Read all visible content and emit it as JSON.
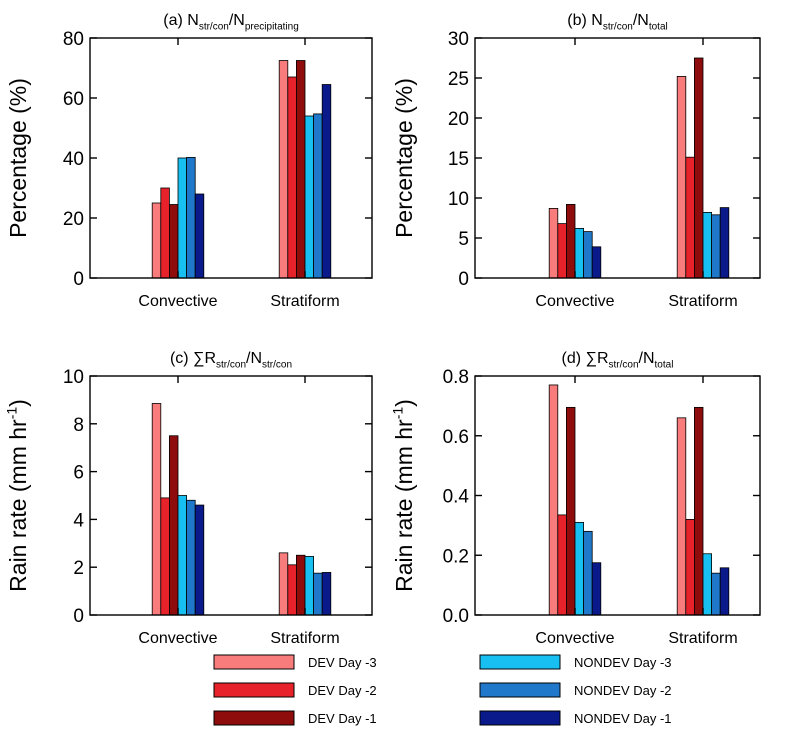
{
  "chart_data": [
    {
      "type": "bar",
      "title_parts": [
        {
          "text": "(a) N",
          "sub": false
        },
        {
          "text": "str/con",
          "sub": true
        },
        {
          "text": "/N",
          "sub": false
        },
        {
          "text": "precipitating",
          "sub": true
        }
      ],
      "ylabel_parts": [
        {
          "text": "Percentage (%)",
          "sup": false
        }
      ],
      "ylim": [
        0,
        80
      ],
      "yticks": [
        0,
        20,
        40,
        60,
        80
      ],
      "ytick_labels": [
        "0",
        "20",
        "40",
        "60",
        "80"
      ],
      "categories": [
        "Convective",
        "Stratiform"
      ],
      "series": [
        {
          "name": "DEV Day -3",
          "values": [
            25,
            72.5
          ]
        },
        {
          "name": "DEV Day -2",
          "values": [
            30,
            67
          ]
        },
        {
          "name": "DEV Day -1",
          "values": [
            24.5,
            72.5
          ]
        },
        {
          "name": "NONDEV Day -3",
          "values": [
            40,
            54
          ]
        },
        {
          "name": "NONDEV Day -2",
          "values": [
            40.2,
            54.7
          ]
        },
        {
          "name": "NONDEV Day -1",
          "values": [
            28,
            64.5
          ]
        }
      ]
    },
    {
      "type": "bar",
      "title_parts": [
        {
          "text": "(b) N",
          "sub": false
        },
        {
          "text": "str/con",
          "sub": true
        },
        {
          "text": "/N",
          "sub": false
        },
        {
          "text": "total",
          "sub": true
        }
      ],
      "ylabel_parts": [
        {
          "text": "Percentage (%)",
          "sup": false
        }
      ],
      "ylim": [
        0,
        30
      ],
      "yticks": [
        0,
        5,
        10,
        15,
        20,
        25,
        30
      ],
      "ytick_labels": [
        "0",
        "5",
        "10",
        "15",
        "20",
        "25",
        "30"
      ],
      "categories": [
        "Convective",
        "Stratiform"
      ],
      "series": [
        {
          "name": "DEV Day -3",
          "values": [
            8.7,
            25.2
          ]
        },
        {
          "name": "DEV Day -2",
          "values": [
            6.8,
            15.1
          ]
        },
        {
          "name": "DEV Day -1",
          "values": [
            9.2,
            27.5
          ]
        },
        {
          "name": "NONDEV Day -3",
          "values": [
            6.2,
            8.2
          ]
        },
        {
          "name": "NONDEV Day -2",
          "values": [
            5.8,
            7.9
          ]
        },
        {
          "name": "NONDEV Day -1",
          "values": [
            3.9,
            8.8
          ]
        }
      ]
    },
    {
      "type": "bar",
      "title_parts": [
        {
          "text": "(c) ∑R",
          "sub": false
        },
        {
          "text": "str/con",
          "sub": true
        },
        {
          "text": "/N",
          "sub": false
        },
        {
          "text": "str/con",
          "sub": true
        }
      ],
      "ylabel_parts": [
        {
          "text": "Rain rate (mm hr",
          "sup": false
        },
        {
          "text": "-1",
          "sup": true
        },
        {
          "text": ")",
          "sup": false
        }
      ],
      "ylim": [
        0,
        10
      ],
      "yticks": [
        0,
        2,
        4,
        6,
        8,
        10
      ],
      "ytick_labels": [
        "0",
        "2",
        "4",
        "6",
        "8",
        "10"
      ],
      "categories": [
        "Convective",
        "Stratiform"
      ],
      "series": [
        {
          "name": "DEV Day -3",
          "values": [
            8.85,
            2.6
          ]
        },
        {
          "name": "DEV Day -2",
          "values": [
            4.9,
            2.1
          ]
        },
        {
          "name": "DEV Day -1",
          "values": [
            7.5,
            2.5
          ]
        },
        {
          "name": "NONDEV Day -3",
          "values": [
            5.0,
            2.45
          ]
        },
        {
          "name": "NONDEV Day -2",
          "values": [
            4.8,
            1.75
          ]
        },
        {
          "name": "NONDEV Day -1",
          "values": [
            4.6,
            1.78
          ]
        }
      ]
    },
    {
      "type": "bar",
      "title_parts": [
        {
          "text": "(d) ∑R",
          "sub": false
        },
        {
          "text": "str/con",
          "sub": true
        },
        {
          "text": "/N",
          "sub": false
        },
        {
          "text": "total",
          "sub": true
        }
      ],
      "ylabel_parts": [
        {
          "text": "Rain rate (mm hr",
          "sup": false
        },
        {
          "text": "-1",
          "sup": true
        },
        {
          "text": ")",
          "sup": false
        }
      ],
      "ylim": [
        0,
        0.8
      ],
      "yticks": [
        0,
        0.2,
        0.4,
        0.6,
        0.8
      ],
      "ytick_labels": [
        "0.0",
        "0.2",
        "0.4",
        "0.6",
        "0.8"
      ],
      "categories": [
        "Convective",
        "Stratiform"
      ],
      "series": [
        {
          "name": "DEV Day -3",
          "values": [
            0.77,
            0.66
          ]
        },
        {
          "name": "DEV Day -2",
          "values": [
            0.335,
            0.32
          ]
        },
        {
          "name": "DEV Day -1",
          "values": [
            0.695,
            0.695
          ]
        },
        {
          "name": "NONDEV Day -3",
          "values": [
            0.31,
            0.205
          ]
        },
        {
          "name": "NONDEV Day -2",
          "values": [
            0.28,
            0.14
          ]
        },
        {
          "name": "NONDEV Day -1",
          "values": [
            0.175,
            0.158
          ]
        }
      ]
    }
  ],
  "legend": {
    "placement": "bottom",
    "items": [
      {
        "label": "DEV Day -3",
        "color": "#f87c7c"
      },
      {
        "label": "DEV Day -2",
        "color": "#e8222a"
      },
      {
        "label": "DEV Day -1",
        "color": "#8e0c0c"
      },
      {
        "label": "NONDEV Day -3",
        "color": "#18c0f2"
      },
      {
        "label": "NONDEV Day -2",
        "color": "#1f78c9"
      },
      {
        "label": "NONDEV Day -1",
        "color": "#0a1a8a"
      }
    ]
  },
  "style": {
    "bar_outline": "#000000",
    "axis_color": "#000000",
    "grid": false
  }
}
